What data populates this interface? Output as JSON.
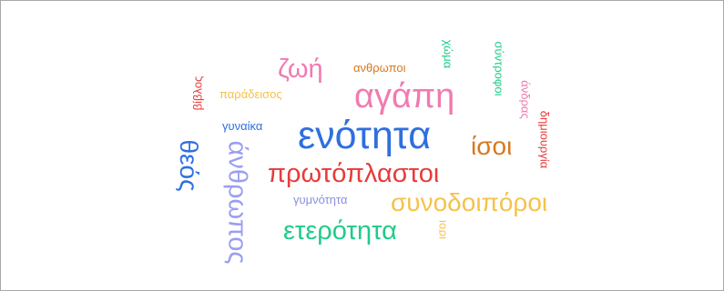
{
  "colors": {
    "blue": "#2f6fe0",
    "pink": "#f07bb0",
    "orange": "#d9781d",
    "green": "#1fcc8a",
    "red": "#e83b3b",
    "yellow": "#f5c24a",
    "purple": "#9a9ef0",
    "lavender": "#8a8fe0"
  },
  "words": {
    "enotita": "ενότητα",
    "agapi": "αγάπη",
    "protoplastoi": "πρωτόπλαστοι",
    "synodoiporoi": "συνοδοιπόροι",
    "eterotita": "ετερότητα",
    "anthropos": "άνθρωπος",
    "theos": "θεός",
    "zoi": "ζωή",
    "isoi": "ίσοι",
    "anthropoi": "ανθρωποι",
    "paradeisos": "παράδεισος",
    "gynaika": "γυναίκα",
    "vivlos": "βίβλος",
    "gymnotita": "γυμνότητα",
    "choma": "χώμα",
    "syntrofoi": "σύντροφοι",
    "andras": "άνδρας",
    "dimiourgia": "δημιουργία",
    "isoi_small": "ισοι"
  }
}
